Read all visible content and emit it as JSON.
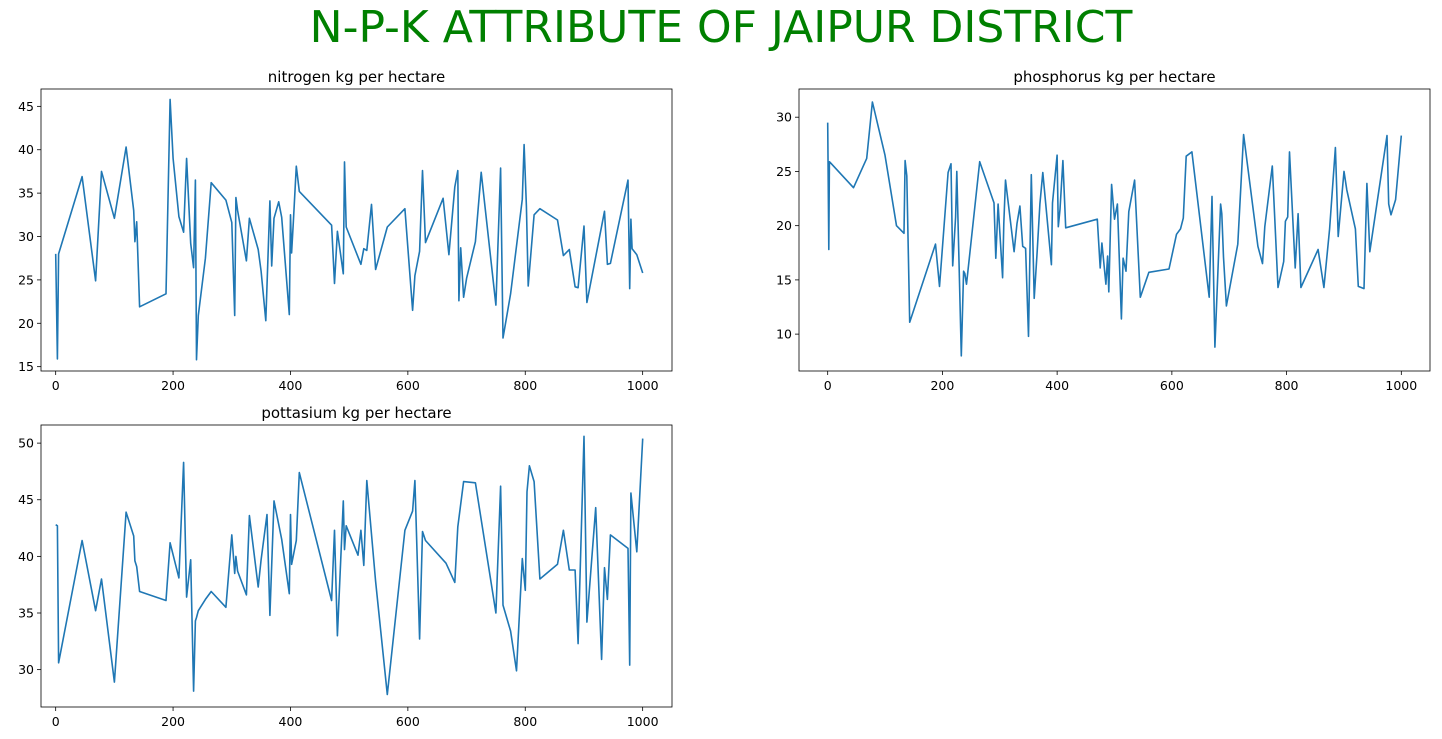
{
  "figure_title": "N-P-K ATTRIBUTE OF JAIPUR DISTRICT",
  "colors": {
    "title": "#008000",
    "line": "#1f77b4"
  },
  "chart_data": [
    {
      "type": "line",
      "title": "nitrogen kg per hectare",
      "xlabel": "",
      "ylabel": "",
      "xlim": [
        -25,
        1050
      ],
      "ylim": [
        14.5,
        47
      ],
      "xticks": [
        0,
        200,
        400,
        600,
        800,
        1000
      ],
      "yticks": [
        15,
        20,
        25,
        30,
        35,
        40,
        45
      ],
      "grid": false,
      "x": [
        0,
        3,
        5,
        45,
        68,
        78,
        100,
        120,
        133,
        135,
        138,
        143,
        188,
        195,
        200,
        210,
        218,
        223,
        230,
        235,
        238,
        240,
        243,
        255,
        265,
        290,
        300,
        305,
        307,
        310,
        325,
        330,
        345,
        350,
        358,
        365,
        368,
        372,
        380,
        385,
        398,
        400,
        402,
        405,
        410,
        415,
        470,
        475,
        480,
        490,
        492,
        495,
        520,
        525,
        530,
        538,
        545,
        565,
        595,
        608,
        612,
        620,
        625,
        630,
        660,
        670,
        680,
        685,
        687,
        690,
        695,
        700,
        715,
        725,
        750,
        758,
        762,
        775,
        795,
        798,
        802,
        805,
        815,
        825,
        855,
        865,
        875,
        885,
        890,
        900,
        905,
        935,
        940,
        945,
        975,
        978,
        980,
        982,
        990,
        1000
      ],
      "values": [
        28,
        15.9,
        28,
        36.9,
        24.9,
        37.5,
        32.1,
        40.3,
        33,
        29.4,
        31.7,
        21.9,
        23.4,
        45.8,
        39,
        32.3,
        30.5,
        39,
        29.2,
        26.4,
        36.5,
        15.8,
        20.9,
        27.5,
        36.2,
        34.2,
        31.6,
        20.9,
        34.5,
        33,
        27.2,
        32.1,
        28.5,
        26,
        20.3,
        34.1,
        26.6,
        32.1,
        34,
        32.2,
        21,
        32.5,
        28.1,
        31.8,
        38.1,
        35.2,
        31.3,
        24.6,
        30.6,
        25.7,
        38.6,
        31.1,
        26.8,
        28.6,
        28.4,
        33.7,
        26.2,
        31.1,
        33.2,
        21.5,
        25.5,
        28.3,
        37.6,
        29.3,
        34.4,
        27.9,
        35.7,
        37.6,
        22.6,
        28.7,
        23,
        25.2,
        29.4,
        37.4,
        22.1,
        37.9,
        18.3,
        23.4,
        34.3,
        40.6,
        33.5,
        24.3,
        32.5,
        33.2,
        31.9,
        27.8,
        28.5,
        24.2,
        24.1,
        31.2,
        22.4,
        32.9,
        26.8,
        26.9,
        36.5,
        24,
        32,
        28.6,
        27.9,
        25.8
      ]
    },
    {
      "type": "line",
      "title": "phosphorus kg per hectare",
      "xlabel": "",
      "ylabel": "",
      "xlim": [
        -50,
        1050
      ],
      "ylim": [
        6.6,
        32.6
      ],
      "xticks": [
        0,
        200,
        400,
        600,
        800,
        1000
      ],
      "yticks": [
        10,
        15,
        20,
        25,
        30
      ],
      "grid": false,
      "x": [
        0,
        2,
        3,
        5,
        45,
        68,
        78,
        100,
        120,
        133,
        135,
        138,
        143,
        188,
        195,
        210,
        215,
        218,
        223,
        225,
        233,
        237,
        239,
        242,
        265,
        290,
        293,
        297,
        305,
        307,
        310,
        325,
        330,
        335,
        340,
        345,
        350,
        355,
        360,
        365,
        370,
        375,
        390,
        392,
        400,
        402,
        405,
        410,
        415,
        470,
        475,
        478,
        485,
        488,
        490,
        495,
        500,
        505,
        512,
        515,
        520,
        525,
        535,
        545,
        560,
        595,
        608,
        615,
        620,
        625,
        635,
        665,
        670,
        675,
        685,
        687,
        690,
        695,
        715,
        725,
        750,
        758,
        762,
        775,
        785,
        795,
        798,
        802,
        805,
        815,
        820,
        825,
        855,
        865,
        875,
        885,
        890,
        900,
        905,
        920,
        925,
        935,
        940,
        945,
        975,
        978,
        980,
        982,
        990,
        1000
      ],
      "values": [
        29.5,
        17.8,
        25.9,
        25.8,
        23.5,
        26.2,
        31.4,
        26.5,
        20,
        19.3,
        26,
        24.6,
        11.1,
        18.3,
        14.4,
        24.9,
        25.7,
        16.3,
        20.8,
        25,
        8,
        15.8,
        15.6,
        14.6,
        25.9,
        22.1,
        17,
        22,
        15.2,
        20.2,
        24.2,
        17.6,
        20.2,
        21.8,
        18.1,
        17.9,
        9.8,
        24.7,
        13.3,
        17.5,
        22,
        24.9,
        16.4,
        22.1,
        26.5,
        19.9,
        21.5,
        26,
        19.8,
        20.6,
        16.1,
        18.4,
        14.6,
        17.2,
        13.9,
        23.8,
        20.6,
        22,
        11.4,
        17,
        15.8,
        21.3,
        24.2,
        13.4,
        15.7,
        16,
        19.2,
        19.7,
        20.7,
        26.4,
        26.8,
        13.4,
        22.7,
        8.8,
        22,
        21.1,
        17.1,
        12.6,
        18.3,
        28.4,
        18.1,
        16.5,
        19.9,
        25.5,
        14.3,
        16.7,
        20.4,
        20.8,
        26.8,
        16.1,
        21.1,
        14.3,
        17.8,
        14.3,
        19.7,
        27.2,
        19,
        25,
        23.3,
        19.7,
        14.4,
        14.2,
        23.9,
        17.6,
        28.3,
        22,
        21.5,
        21,
        22.4,
        28.3
      ]
    },
    {
      "type": "line",
      "title": "pottasium kg per hectare",
      "xlabel": "",
      "ylabel": "",
      "xlim": [
        -25,
        1050
      ],
      "ylim": [
        26.7,
        51.6
      ],
      "xticks": [
        0,
        200,
        400,
        600,
        800,
        1000
      ],
      "yticks": [
        30,
        35,
        40,
        45,
        50
      ],
      "grid": false,
      "x": [
        0,
        3,
        5,
        45,
        68,
        78,
        100,
        120,
        133,
        135,
        138,
        143,
        188,
        195,
        210,
        218,
        223,
        230,
        235,
        238,
        240,
        243,
        255,
        265,
        290,
        300,
        305,
        307,
        310,
        325,
        330,
        345,
        350,
        360,
        365,
        372,
        385,
        398,
        400,
        402,
        410,
        415,
        470,
        475,
        480,
        490,
        492,
        495,
        515,
        520,
        525,
        530,
        545,
        565,
        595,
        608,
        612,
        620,
        625,
        630,
        665,
        680,
        685,
        695,
        715,
        750,
        758,
        762,
        775,
        785,
        795,
        800,
        803,
        807,
        815,
        825,
        855,
        865,
        875,
        885,
        890,
        900,
        905,
        920,
        930,
        935,
        940,
        945,
        975,
        978,
        980,
        990,
        1000
      ],
      "values": [
        42.8,
        42.7,
        30.6,
        41.4,
        35.2,
        38,
        28.9,
        43.9,
        41.8,
        39.6,
        39.1,
        36.9,
        36.1,
        41.2,
        38.1,
        48.3,
        36.4,
        39.7,
        28.1,
        34.3,
        34.6,
        35.2,
        36.2,
        36.9,
        35.5,
        41.9,
        38.5,
        40,
        38.7,
        36.6,
        43.6,
        37.3,
        39.7,
        43.7,
        34.8,
        44.9,
        41.5,
        36.7,
        43.7,
        39.3,
        41.4,
        47.4,
        36.1,
        42.3,
        33,
        44.9,
        40.6,
        42.7,
        40.1,
        42.3,
        39.2,
        46.7,
        37.8,
        27.8,
        42.3,
        44,
        46.7,
        32.7,
        42.2,
        41.4,
        39.4,
        37.7,
        42.6,
        46.6,
        46.5,
        35,
        46.2,
        35.7,
        33.4,
        29.9,
        39.8,
        37,
        45.7,
        48,
        46.6,
        38,
        39.3,
        42.3,
        38.8,
        38.8,
        32.3,
        50.6,
        34.2,
        44.3,
        30.9,
        39,
        36.2,
        41.9,
        40.7,
        30.4,
        45.6,
        40.4,
        50.4
      ]
    }
  ]
}
